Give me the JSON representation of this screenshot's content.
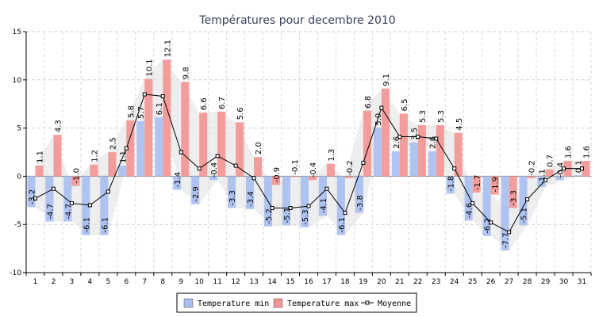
{
  "chart_data": {
    "type": "bar",
    "title": "Températures pour decembre 2010",
    "xlabel": "",
    "ylabel": "",
    "ylim": [
      -10,
      15
    ],
    "yticks": [
      -10,
      -5,
      0,
      5,
      10,
      15
    ],
    "grid": true,
    "legend_position": "bottom-center",
    "categories": [
      "1",
      "2",
      "3",
      "4",
      "5",
      "6",
      "7",
      "8",
      "9",
      "10",
      "11",
      "12",
      "13",
      "14",
      "15",
      "16",
      "17",
      "18",
      "19",
      "20",
      "21",
      "22",
      "23",
      "24",
      "25",
      "26",
      "27",
      "28",
      "29",
      "30",
      "31"
    ],
    "series": [
      {
        "name": "Temperature min",
        "type": "bar",
        "color": "#a9bff0",
        "values": [
          -3.2,
          -4.7,
          -4.7,
          -6.1,
          -6.1,
          1.1,
          5.7,
          6.1,
          -1.4,
          -2.9,
          -0.4,
          -3.3,
          -3.4,
          -5.2,
          -5.1,
          -5.3,
          -4.1,
          -6.1,
          -3.8,
          5.0,
          2.6,
          3.5,
          2.6,
          -1.8,
          -4.6,
          -6.2,
          -7.7,
          -5.1,
          -1.1,
          -0.4,
          0.1
        ]
      },
      {
        "name": "Temperature max",
        "type": "bar",
        "color": "#f29595",
        "values": [
          1.1,
          4.3,
          -1.0,
          1.2,
          2.5,
          5.8,
          10.1,
          12.1,
          9.8,
          6.6,
          6.7,
          5.6,
          2.0,
          -0.9,
          -0.1,
          -0.4,
          1.3,
          -0.2,
          6.8,
          9.1,
          6.5,
          5.3,
          5.3,
          4.5,
          -1.7,
          -1.9,
          -3.3,
          -0.2,
          0.7,
          1.6,
          1.6
        ]
      },
      {
        "name": "Moyenne",
        "type": "line",
        "color": "#000000",
        "values": [
          -2.3,
          -1.3,
          -2.8,
          -3.0,
          -1.6,
          2.9,
          8.5,
          8.3,
          2.5,
          0.8,
          2.1,
          1.1,
          -0.2,
          -3.3,
          -3.3,
          -3.1,
          -1.3,
          -3.8,
          1.4,
          7.1,
          4.1,
          4.1,
          3.9,
          0.8,
          -2.8,
          -4.8,
          -5.8,
          -2.4,
          -0.4,
          0.8,
          0.8
        ]
      }
    ]
  }
}
